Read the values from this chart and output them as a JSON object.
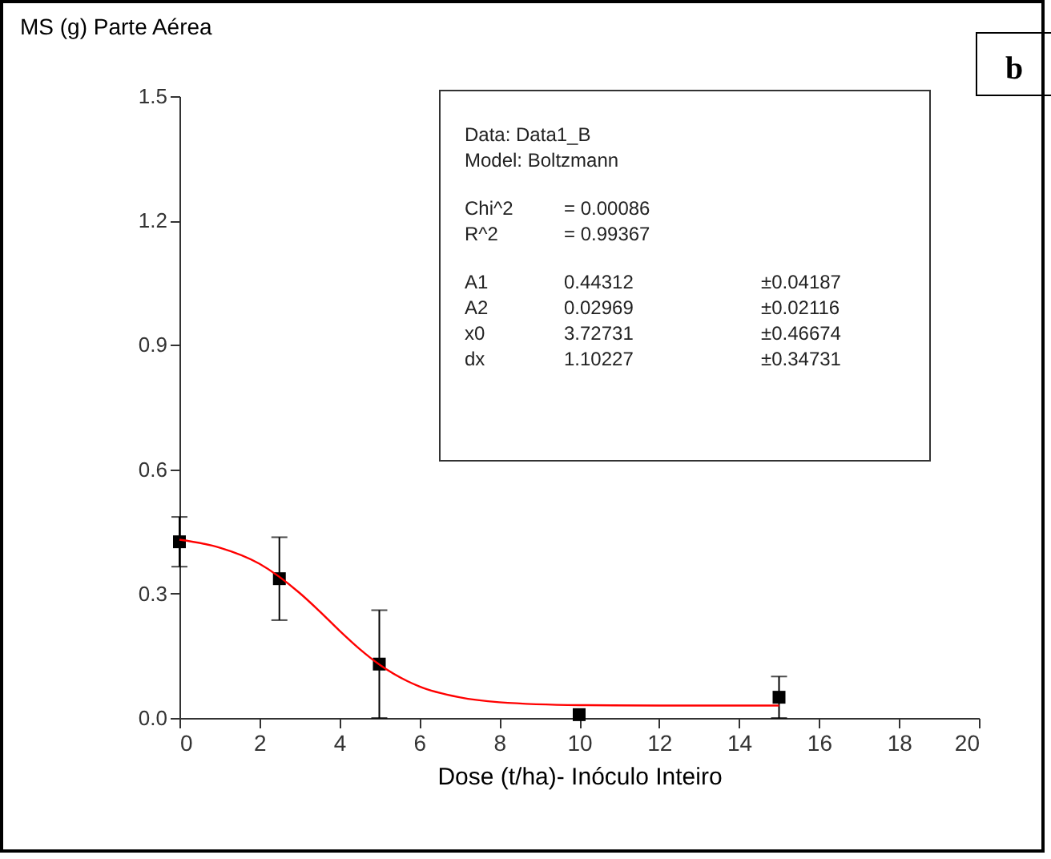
{
  "chart_data": {
    "type": "scatter",
    "ylabel": "MS (g) Parte Aérea",
    "xlabel": "Dose (t/ha)- Inóculo Inteiro",
    "annotations": [
      "b",
      "Data: Data1_B",
      "Model: Boltzmann",
      "Chi^2\t= 0.00086",
      "R^2\t= 0.99367",
      "A1\t0.44312\t±0.04187",
      "A2\t0.02969\t±0.02116",
      "x0\t3.72731\t±0.46674",
      "dx\t1.10227\t±0.34731"
    ],
    "xlim": [
      0,
      20
    ],
    "xticks": [
      0,
      2,
      4,
      6,
      8,
      10,
      12,
      14,
      16,
      18,
      20
    ],
    "ylim": [
      0,
      1.5
    ],
    "yticks": [
      {
        "value": 0,
        "label": "0.0"
      },
      {
        "value": 0.3,
        "label": "0.3"
      },
      {
        "value": 0.6,
        "label": "0.6"
      },
      {
        "value": 0.9,
        "label": "0.9"
      },
      {
        "value": 1.2,
        "label": "1.2"
      },
      {
        "value": 1.5,
        "label": "1.5"
      }
    ],
    "grid": false,
    "series": [
      {
        "color": "#000000",
        "marker": "square",
        "x": [
          0,
          2.5,
          5,
          10,
          15
        ],
        "values": [
          0.425,
          0.336,
          0.13,
          0.008,
          0.05
        ],
        "errors": [
          0.06,
          0.1,
          0.13,
          null,
          0.05
        ]
      },
      {
        "type": "line",
        "color": "#ff0000",
        "marker": "none",
        "line_style": "solid",
        "x": [
          0,
          1,
          2,
          3,
          3.5,
          4,
          4.5,
          5,
          6,
          7,
          8,
          10,
          12,
          15
        ],
        "values": [
          0.43,
          0.411,
          0.372,
          0.302,
          0.258,
          0.211,
          0.167,
          0.129,
          0.076,
          0.05,
          0.038,
          0.031,
          0.03,
          0.03
        ]
      }
    ]
  }
}
